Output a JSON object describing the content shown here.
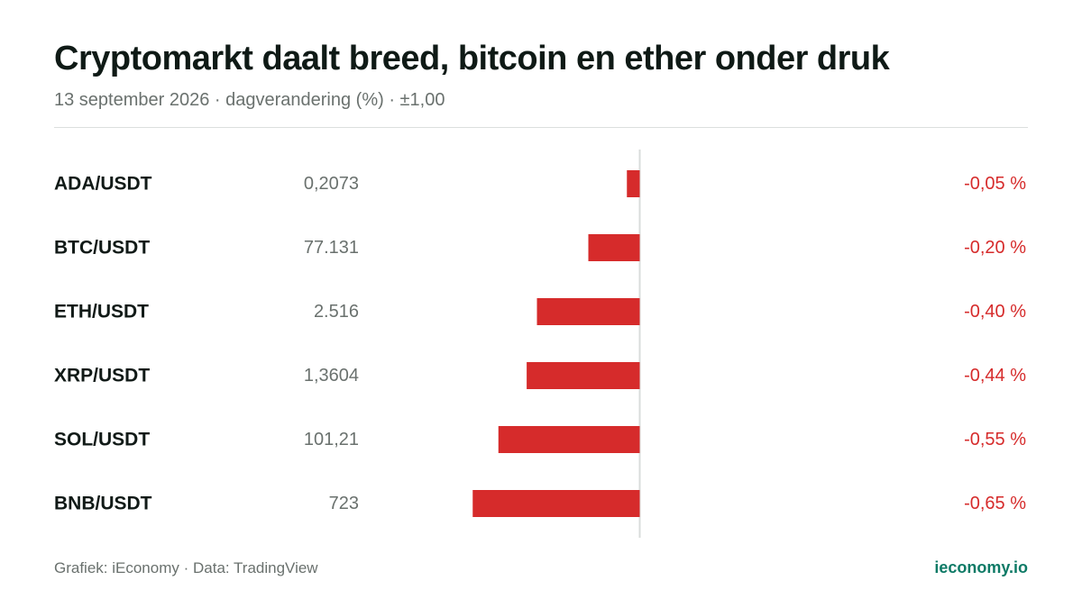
{
  "header": {
    "title": "Cryptomarkt daalt breed, bitcoin en ether onder druk",
    "subtitle": "13 september 2026 · dagverandering (%) · ±1,00"
  },
  "footer": {
    "source": "Grafiek: iEconomy · Data: TradingView",
    "brand": "ieconomy.io"
  },
  "colors": {
    "negative": "#d62b2b",
    "axis": "#d9dcdb",
    "brand": "#0e7a66"
  },
  "chart_data": {
    "type": "bar",
    "orientation": "horizontal",
    "categories": [
      "ADA/USDT",
      "BTC/USDT",
      "ETH/USDT",
      "XRP/USDT",
      "SOL/USDT",
      "BNB/USDT"
    ],
    "prices": [
      "0,2073",
      "77.131",
      "2.516",
      "1,3604",
      "101,21",
      "723"
    ],
    "values": [
      -0.05,
      -0.2,
      -0.4,
      -0.44,
      -0.55,
      -0.65
    ],
    "value_labels": [
      "-0,05 %",
      "-0,20 %",
      "-0,40 %",
      "-0,44 %",
      "-0,55 %",
      "-0,65 %"
    ],
    "xlim": [
      -1,
      1
    ],
    "grid": false,
    "zero_line": true
  }
}
